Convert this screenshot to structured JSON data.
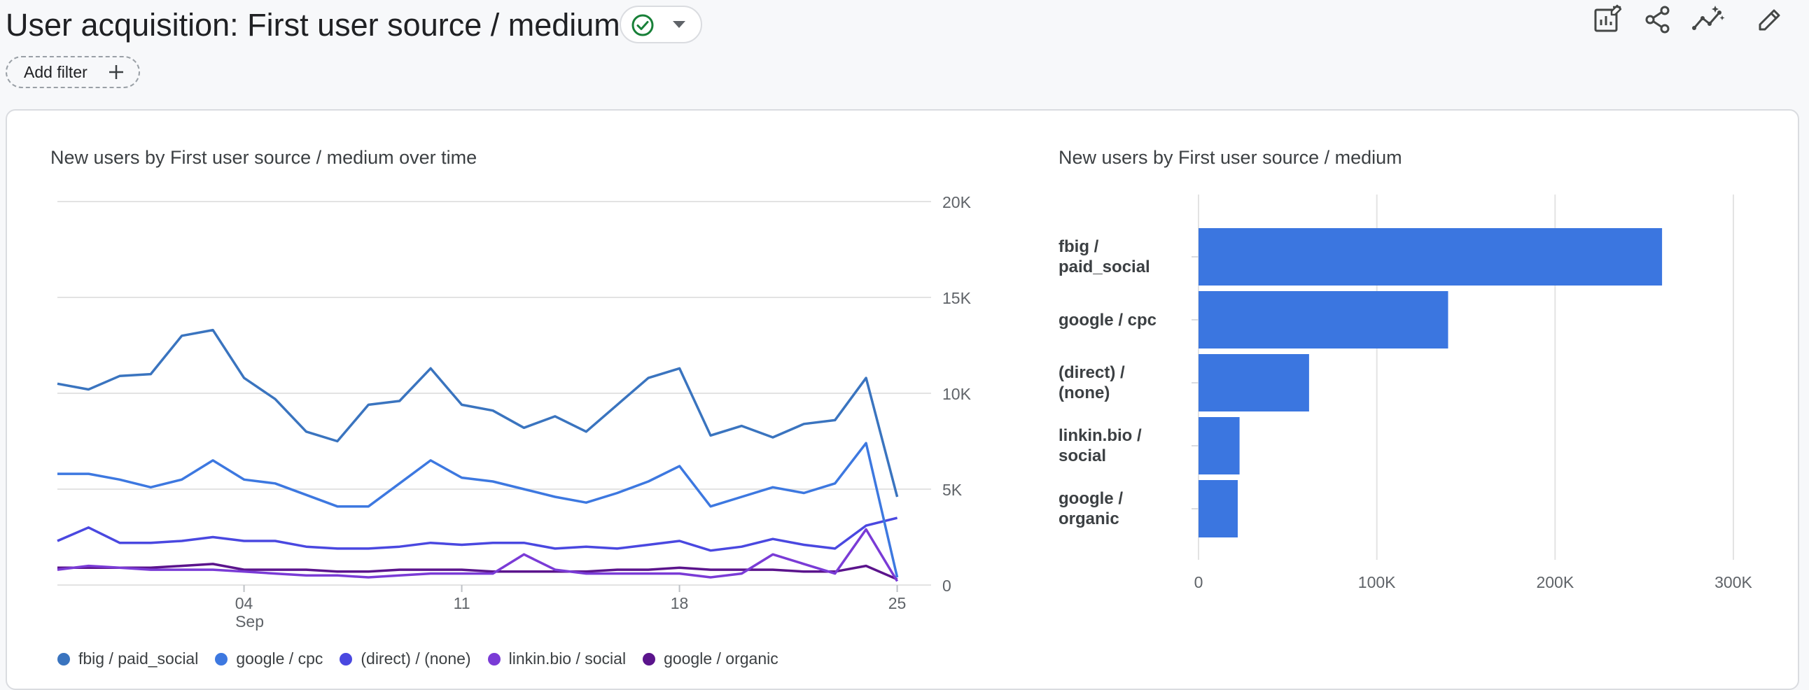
{
  "header": {
    "title": "User acquisition: First user source / medium",
    "add_filter_label": "Add filter",
    "status_color": "#188038"
  },
  "toolbar": {
    "icons": [
      "customize-report-icon",
      "share-icon",
      "insights-icon",
      "edit-icon"
    ]
  },
  "chart_data": [
    {
      "type": "line",
      "title": "New users by First user source / medium over time",
      "xlabel": "",
      "ylabel": "",
      "x_tick_labels": [
        "04",
        "11",
        "18",
        "25"
      ],
      "x_sub_label": "Sep",
      "y_tick_labels": [
        "20K",
        "15K",
        "10K",
        "5K",
        "0"
      ],
      "ylim": [
        0,
        20000
      ],
      "y_ticks": [
        20000,
        15000,
        10000,
        5000,
        0
      ],
      "grid": true,
      "legend_position": "bottom",
      "x": [
        "Aug 29",
        "Aug 30",
        "Aug 31",
        "Sep 1",
        "Sep 2",
        "Sep 3",
        "Sep 4",
        "Sep 5",
        "Sep 6",
        "Sep 7",
        "Sep 8",
        "Sep 9",
        "Sep 10",
        "Sep 11",
        "Sep 12",
        "Sep 13",
        "Sep 14",
        "Sep 15",
        "Sep 16",
        "Sep 17",
        "Sep 18",
        "Sep 19",
        "Sep 20",
        "Sep 21",
        "Sep 22",
        "Sep 23",
        "Sep 24",
        "Sep 25",
        "Sep 26"
      ],
      "x_tick_indices": [
        6,
        13,
        20,
        27
      ],
      "series": [
        {
          "name": "fbig / paid_social",
          "color": "#3a74bf",
          "values": [
            10500,
            10200,
            10900,
            11000,
            13000,
            13300,
            10800,
            9700,
            8000,
            7500,
            9400,
            9600,
            11300,
            9400,
            9100,
            8200,
            8800,
            8000,
            9400,
            10800,
            11300,
            7800,
            8300,
            7700,
            8400,
            8600,
            10800,
            4600,
            null
          ]
        },
        {
          "name": "google / cpc",
          "color": "#3d78e0",
          "values": [
            5800,
            5800,
            5500,
            5100,
            5500,
            6500,
            5500,
            5300,
            4700,
            4100,
            4100,
            5300,
            6500,
            5600,
            5400,
            5000,
            4600,
            4300,
            4800,
            5400,
            6200,
            4100,
            4600,
            5100,
            4800,
            5300,
            7400,
            400,
            null
          ]
        },
        {
          "name": "(direct) / (none)",
          "color": "#4a48e0",
          "values": [
            2300,
            3000,
            2200,
            2200,
            2300,
            2500,
            2300,
            2300,
            2000,
            1900,
            1900,
            2000,
            2200,
            2100,
            2200,
            2200,
            1900,
            2000,
            1900,
            2100,
            2300,
            1800,
            2000,
            2400,
            2100,
            1900,
            3100,
            3500,
            null
          ]
        },
        {
          "name": "linkin.bio / social",
          "color": "#7a3bd6",
          "values": [
            800,
            1000,
            900,
            800,
            800,
            800,
            700,
            600,
            500,
            500,
            400,
            500,
            600,
            600,
            600,
            1600,
            800,
            600,
            600,
            600,
            600,
            400,
            600,
            1600,
            1100,
            600,
            2900,
            200,
            null
          ]
        },
        {
          "name": "google / organic",
          "color": "#5b148c",
          "values": [
            900,
            900,
            900,
            900,
            1000,
            1100,
            800,
            800,
            800,
            700,
            700,
            800,
            800,
            800,
            700,
            700,
            700,
            700,
            800,
            800,
            900,
            800,
            800,
            800,
            700,
            700,
            1000,
            300,
            null
          ]
        }
      ]
    },
    {
      "type": "bar",
      "orientation": "horizontal",
      "title": "New users by First user source / medium",
      "xlabel": "",
      "ylabel": "",
      "categories": [
        "fbig /\npaid_social",
        "google / cpc",
        "(direct) /\n(none)",
        "linkin.bio /\nsocial",
        "google /\norganic"
      ],
      "values": [
        260000,
        140000,
        62000,
        23000,
        22000
      ],
      "x_tick_labels": [
        "0",
        "100K",
        "200K",
        "300K"
      ],
      "x_ticks": [
        0,
        100000,
        200000,
        300000
      ],
      "xlim": [
        0,
        300000
      ],
      "grid": true,
      "color": "#3b76e0"
    }
  ]
}
